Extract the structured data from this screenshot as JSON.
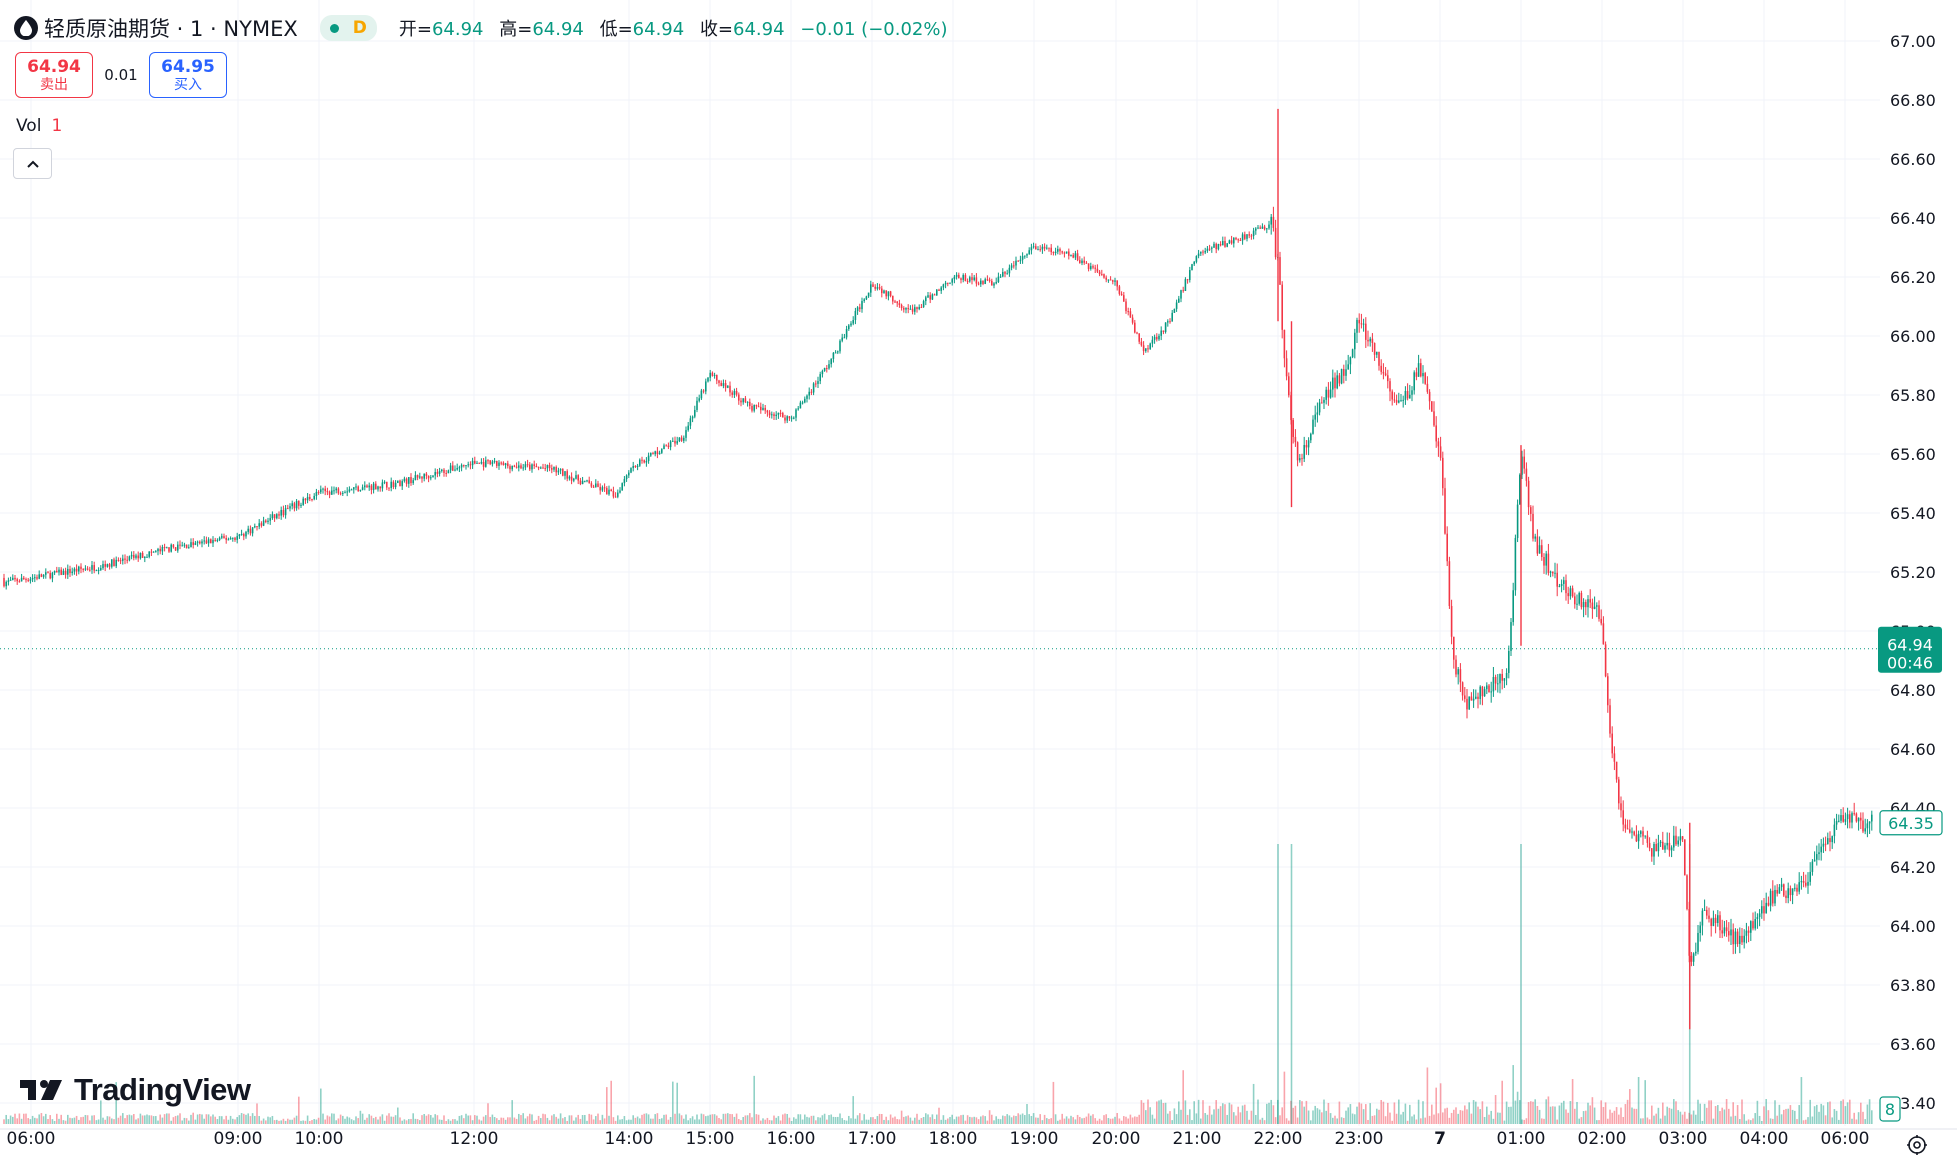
{
  "header": {
    "symbol_title": "轻质原油期货 · 1 · NYMEX",
    "session_badge": "D",
    "ohlc": [
      {
        "label": "开=",
        "value": "64.94"
      },
      {
        "label": "高=",
        "value": "64.94"
      },
      {
        "label": "低=",
        "value": "64.94"
      },
      {
        "label": "收=",
        "value": "64.94"
      },
      {
        "label": "",
        "value": "−0.01 (−0.02%)"
      }
    ]
  },
  "trade": {
    "sell_price": "64.94",
    "sell_label": "卖出",
    "spread": "0.01",
    "buy_price": "64.95",
    "buy_label": "买入"
  },
  "volume_pane": {
    "label": "Vol",
    "value": "1"
  },
  "logo_text": "TradingView",
  "icons": [
    "droplet-icon",
    "chevron-up-icon",
    "tradingview-logo-icon",
    "settings-icon"
  ],
  "colors": {
    "up": "#089981",
    "down": "#f23645",
    "grid": "#f0f3fa",
    "buy": "#2962ff"
  },
  "chart_data": {
    "type": "candlestick",
    "y_ticks": [
      "67.00",
      "66.80",
      "66.60",
      "66.40",
      "66.20",
      "66.00",
      "65.80",
      "65.60",
      "65.40",
      "65.20",
      "65.00",
      "64.80",
      "64.60",
      "64.40",
      "64.20",
      "64.00",
      "63.80",
      "63.60",
      "63.40"
    ],
    "ylim": [
      63.4,
      67.0
    ],
    "x_ticks": [
      "06:00",
      "09:00",
      "10:00",
      "12:00",
      "14:00",
      "15:00",
      "16:00",
      "17:00",
      "18:00",
      "19:00",
      "20:00",
      "21:00",
      "22:00",
      "23:00",
      "7",
      "01:00",
      "02:00",
      "03:00",
      "04:00",
      "06:00"
    ],
    "price_path": [
      [
        "06:00",
        65.18
      ],
      [
        "07:00",
        65.22
      ],
      [
        "08:00",
        65.28
      ],
      [
        "09:00",
        65.32
      ],
      [
        "10:00",
        65.47
      ],
      [
        "11:00",
        65.5
      ],
      [
        "12:00",
        65.57
      ],
      [
        "13:00",
        65.55
      ],
      [
        "13:50",
        65.46
      ],
      [
        "14:00",
        65.55
      ],
      [
        "14:40",
        65.66
      ],
      [
        "15:00",
        65.87
      ],
      [
        "15:30",
        65.76
      ],
      [
        "16:00",
        65.72
      ],
      [
        "16:30",
        65.92
      ],
      [
        "17:00",
        66.18
      ],
      [
        "17:30",
        66.08
      ],
      [
        "18:00",
        66.2
      ],
      [
        "18:30",
        66.18
      ],
      [
        "19:00",
        66.3
      ],
      [
        "19:30",
        66.27
      ],
      [
        "20:00",
        66.18
      ],
      [
        "20:20",
        65.95
      ],
      [
        "20:40",
        66.05
      ],
      [
        "21:00",
        66.28
      ],
      [
        "21:30",
        66.33
      ],
      [
        "21:55",
        66.38
      ],
      [
        "22:00",
        66.25
      ],
      [
        "22:05",
        65.9
      ],
      [
        "22:15",
        65.55
      ],
      [
        "22:30",
        65.75
      ],
      [
        "22:50",
        65.9
      ],
      [
        "23:00",
        66.05
      ],
      [
        "23:30",
        65.75
      ],
      [
        "23:45",
        65.9
      ],
      [
        "00:00",
        65.6
      ],
      [
        "00:10",
        64.9
      ],
      [
        "00:20",
        64.75
      ],
      [
        "00:50",
        64.85
      ],
      [
        "01:00",
        65.6
      ],
      [
        "01:10",
        65.3
      ],
      [
        "01:30",
        65.15
      ],
      [
        "02:00",
        65.05
      ],
      [
        "02:05",
        64.7
      ],
      [
        "02:15",
        64.35
      ],
      [
        "02:40",
        64.25
      ],
      [
        "03:00",
        64.3
      ],
      [
        "03:05",
        63.85
      ],
      [
        "03:15",
        64.05
      ],
      [
        "03:40",
        63.95
      ],
      [
        "04:10",
        64.1
      ],
      [
        "05:00",
        64.15
      ],
      [
        "05:40",
        64.3
      ],
      [
        "06:00",
        64.38
      ],
      [
        "06:15",
        64.35
      ]
    ],
    "spikes": [
      {
        "time": "22:00",
        "high": 66.77,
        "low": 66.05
      },
      {
        "time": "22:10",
        "high": 66.05,
        "low": 65.42
      },
      {
        "time": "01:00",
        "high": 65.63,
        "low": 64.95
      },
      {
        "time": "03:05",
        "high": 64.35,
        "low": 63.65
      }
    ],
    "last_price": "64.94",
    "countdown": "00:46",
    "marker_price": "64.35",
    "volume_last": "8"
  }
}
